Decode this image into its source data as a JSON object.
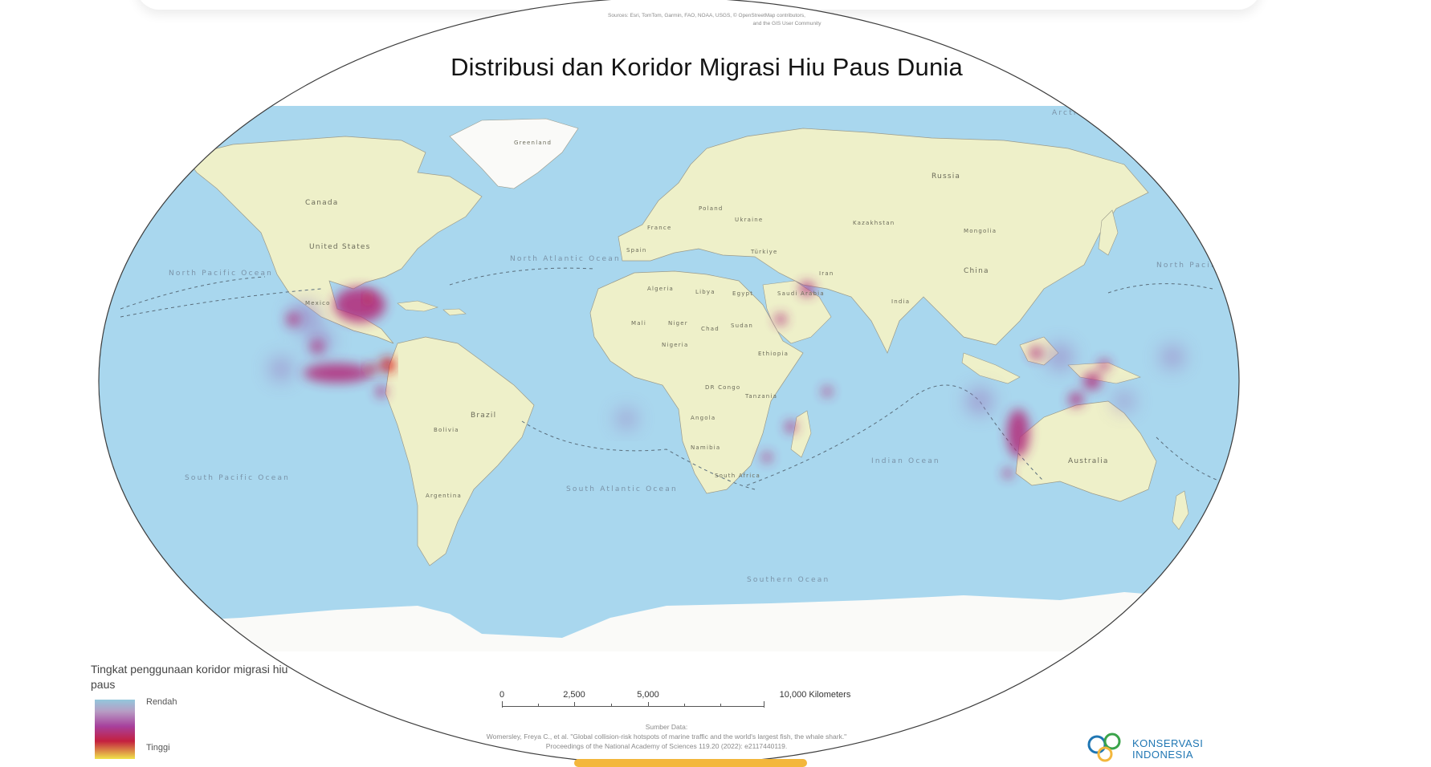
{
  "map": {
    "title": "Distribusi dan Koridor Migrasi Hiu Paus Dunia",
    "credits": [
      "Sources: Esri, TomTom, Garmin, FAO, NOAA, USGS, © OpenStreetMap contributors,",
      "and the GIS User Community"
    ],
    "colors": {
      "ocean": "#a9d7ee",
      "land": "#eef0c9",
      "ice": "#fafaf8",
      "hotspot_low": "#9b84c4",
      "hotspot_mid": "#b2337f",
      "hotspot_high": "#d91a1a"
    },
    "countries": [
      "Greenland",
      "Canada",
      "United States",
      "Mexico",
      "Brazil",
      "Bolivia",
      "Argentina",
      "Russia",
      "Kazakhstan",
      "Mongolia",
      "China",
      "India",
      "Iran",
      "Saudi Arabia",
      "Algeria",
      "Libya",
      "Egypt",
      "Mali",
      "Niger",
      "Chad",
      "Sudan",
      "Nigeria",
      "Ethiopia",
      "DR Congo",
      "Tanzania",
      "Angola",
      "Namibia",
      "South Africa",
      "Ukraine",
      "Poland",
      "Türkiye",
      "France",
      "Spain",
      "Australia"
    ],
    "oceans": [
      "North Pacific Ocean",
      "North Atlantic Ocean",
      "South Pacific Ocean",
      "South Atlantic Ocean",
      "Indian Ocean",
      "North Pacific Ocean",
      "Southern Ocean",
      "Arctic Ocean"
    ]
  },
  "legend": {
    "title": "Tingkat penggunaan koridor migrasi hiu paus",
    "low": "Rendah",
    "high": "Tinggi"
  },
  "scalebar": {
    "labels": [
      "0",
      "2,500",
      "5,000",
      "10,000 Kilometers"
    ]
  },
  "source": {
    "heading": "Sumber Data:",
    "line1": "Womersley, Freya C., et al. \"Global collision-risk hotspots of marine traffic and the world's largest fish, the whale shark.\"",
    "line2": "Proceedings of the National Academy of Sciences 119.20 (2022): e2117440119."
  },
  "logo": {
    "name": "KONSERVASI",
    "sub": "INDONESIA"
  }
}
